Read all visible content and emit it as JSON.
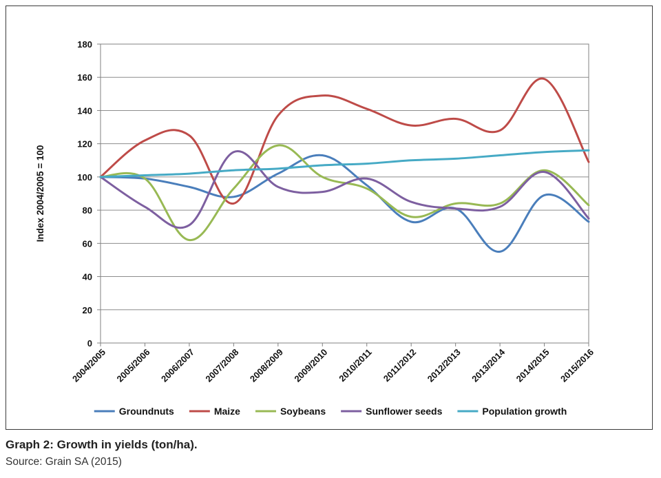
{
  "caption": {
    "title": "Graph 2: Growth in yields (ton/ha).",
    "source": "Source: Grain SA (2015)"
  },
  "chart_data": {
    "type": "line",
    "ylabel": "Index 2004/2005 = 100",
    "xlabel": "",
    "ylim": [
      0,
      180
    ],
    "yticks": [
      0,
      20,
      40,
      60,
      80,
      100,
      120,
      140,
      160,
      180
    ],
    "grid": true,
    "legend_position": "bottom",
    "categories": [
      "2004/2005",
      "2005/2006",
      "2006/2007",
      "2007/2008",
      "2008/2009",
      "2009/2010",
      "2010/2011",
      "2011/2012",
      "2012/2013",
      "2013/2014",
      "2014/2015",
      "2015/2016"
    ],
    "series": [
      {
        "name": "Groundnuts",
        "color": "#4a7ebb",
        "values": [
          100,
          99,
          94,
          88,
          102,
          113,
          95,
          73,
          81,
          55,
          89,
          73
        ]
      },
      {
        "name": "Maize",
        "color": "#be4b48",
        "values": [
          100,
          122,
          125,
          84,
          137,
          149,
          141,
          131,
          135,
          128,
          159,
          109
        ]
      },
      {
        "name": "Soybeans",
        "color": "#98b954",
        "values": [
          100,
          99,
          62,
          93,
          119,
          100,
          93,
          76,
          84,
          84,
          104,
          83
        ]
      },
      {
        "name": "Sunflower seeds",
        "color": "#7d5fa0",
        "values": [
          100,
          82,
          71,
          115,
          94,
          91,
          99,
          85,
          81,
          82,
          103,
          75
        ]
      },
      {
        "name": "Population growth",
        "color": "#46aac5",
        "values": [
          100,
          101,
          102,
          104,
          105,
          107,
          108,
          110,
          111,
          113,
          115,
          116
        ]
      }
    ]
  }
}
